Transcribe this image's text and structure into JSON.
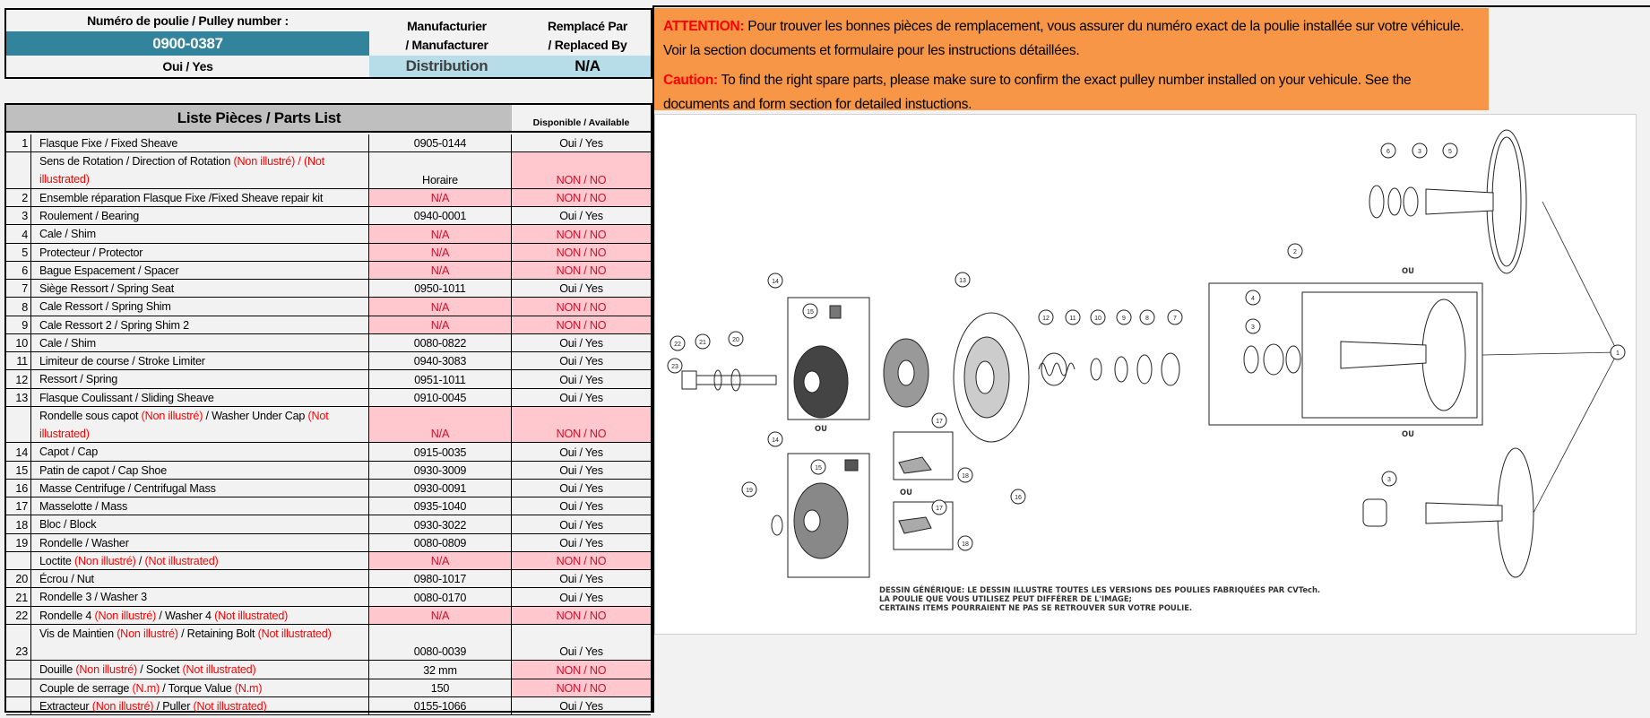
{
  "header": {
    "pulley_label": "Numéro de poulie / Pulley number :",
    "pulley_number": "0900-0387",
    "pulley_available": "Oui / Yes",
    "manufacturer_label_1": "Manufacturier",
    "manufacturer_label_2": "/ Manufacturer",
    "manufacturer_value": "Distribution",
    "replaced_label_1": "Remplacé Par",
    "replaced_label_2": "/ Replaced By",
    "replaced_value": "N/A"
  },
  "notice": {
    "fr_prefix": "ATTENTION:",
    "fr_text": " Pour trouver les bonnes pièces de remplacement, vous assurer du numéro exact de la poulie installée sur votre véhicule. Voir la section documents et formulaire pour les instructions détaillées.",
    "en_prefix": "Caution:",
    "en_text": " To find the right spare parts, please make sure to confirm the exact pulley number installed on your vehicule. See the documents and form section for detailed instuctions."
  },
  "parts_list": {
    "title": "Liste Pièces / Parts List",
    "available_header": "Disponible / Available",
    "rows": [
      {
        "num": "1",
        "desc": [
          {
            "t": "Flasque Fixe / Fixed Sheave"
          }
        ],
        "part": "0905-0144",
        "avail": "Oui / Yes"
      },
      {
        "num": "",
        "desc": [
          {
            "t": "Sens de Rotation / Direction of Rotation "
          },
          {
            "t": "(Non illustré) / (Not illustrated)",
            "red": true
          }
        ],
        "part": "Horaire",
        "avail": "NON / NO",
        "tall": true,
        "av_no": true
      },
      {
        "num": "2",
        "desc": [
          {
            "t": "Ensemble réparation Flasque Fixe /Fixed Sheave repair kit"
          }
        ],
        "part": "N/A",
        "avail": "NON / NO",
        "part_na": true,
        "av_no": true
      },
      {
        "num": "3",
        "desc": [
          {
            "t": "Roulement / Bearing"
          }
        ],
        "part": "0940-0001",
        "avail": "Oui / Yes"
      },
      {
        "num": "4",
        "desc": [
          {
            "t": "Cale / Shim"
          }
        ],
        "part": "N/A",
        "avail": "NON / NO",
        "part_na": true,
        "av_no": true
      },
      {
        "num": "5",
        "desc": [
          {
            "t": "Protecteur / Protector"
          }
        ],
        "part": "N/A",
        "avail": "NON / NO",
        "part_na": true,
        "av_no": true
      },
      {
        "num": "6",
        "desc": [
          {
            "t": "Bague Espacement / Spacer"
          }
        ],
        "part": "N/A",
        "avail": "NON / NO",
        "part_na": true,
        "av_no": true
      },
      {
        "num": "7",
        "desc": [
          {
            "t": "Siège Ressort / Spring Seat"
          }
        ],
        "part": "0950-1011",
        "avail": "Oui / Yes"
      },
      {
        "num": "8",
        "desc": [
          {
            "t": "Cale Ressort / Spring Shim"
          }
        ],
        "part": "N/A",
        "avail": "NON / NO",
        "part_na": true,
        "av_no": true
      },
      {
        "num": "9",
        "desc": [
          {
            "t": "Cale Ressort 2 / Spring Shim 2"
          }
        ],
        "part": "N/A",
        "avail": "NON / NO",
        "part_na": true,
        "av_no": true
      },
      {
        "num": "10",
        "desc": [
          {
            "t": "Cale / Shim"
          }
        ],
        "part": "0080-0822",
        "avail": "Oui / Yes"
      },
      {
        "num": "11",
        "desc": [
          {
            "t": "Limiteur de course / Stroke Limiter"
          }
        ],
        "part": "0940-3083",
        "avail": "Oui / Yes"
      },
      {
        "num": "12",
        "desc": [
          {
            "t": "Ressort / Spring"
          }
        ],
        "part": "0951-1011",
        "avail": "Oui / Yes"
      },
      {
        "num": "13",
        "desc": [
          {
            "t": "Flasque Coulissant / Sliding Sheave"
          }
        ],
        "part": "0910-0045",
        "avail": "Oui / Yes"
      },
      {
        "num": "",
        "desc": [
          {
            "t": "Rondelle sous capot "
          },
          {
            "t": "(Non illustré)",
            "red": true
          },
          {
            "t": " / Washer Under Cap "
          },
          {
            "t": "(Not illustrated)",
            "red": true
          }
        ],
        "part": "N/A",
        "avail": "NON / NO",
        "tall": true,
        "part_na": true,
        "av_no": true
      },
      {
        "num": "14",
        "desc": [
          {
            "t": "Capot / Cap"
          }
        ],
        "part": "0915-0035",
        "avail": "Oui / Yes"
      },
      {
        "num": "15",
        "desc": [
          {
            "t": "Patin de capot / Cap Shoe"
          }
        ],
        "part": "0930-3009",
        "avail": "Oui / Yes"
      },
      {
        "num": "16",
        "desc": [
          {
            "t": "Masse Centrifuge / Centrifugal Mass"
          }
        ],
        "part": "0930-0091",
        "avail": "Oui / Yes"
      },
      {
        "num": "17",
        "desc": [
          {
            "t": "Masselotte / Mass"
          }
        ],
        "part": "0935-1040",
        "avail": "Oui / Yes"
      },
      {
        "num": "18",
        "desc": [
          {
            "t": "Bloc / Block"
          }
        ],
        "part": "0930-3022",
        "avail": "Oui / Yes"
      },
      {
        "num": "19",
        "desc": [
          {
            "t": "Rondelle / Washer"
          }
        ],
        "part": "0080-0809",
        "avail": "Oui / Yes"
      },
      {
        "num": "",
        "desc": [
          {
            "t": "Loctite "
          },
          {
            "t": "(Non illustré)",
            "red": true
          },
          {
            "t": " / "
          },
          {
            "t": "(Not illustrated)",
            "red": true
          }
        ],
        "part": "N/A",
        "avail": "NON / NO",
        "part_na": true,
        "av_no": true
      },
      {
        "num": "20",
        "desc": [
          {
            "t": "Écrou / Nut"
          }
        ],
        "part": "0980-1017",
        "avail": "Oui / Yes"
      },
      {
        "num": "21",
        "desc": [
          {
            "t": "Rondelle 3 / Washer 3"
          }
        ],
        "part": "0080-0170",
        "avail": "Oui / Yes"
      },
      {
        "num": "22",
        "desc": [
          {
            "t": "Rondelle 4 "
          },
          {
            "t": "(Non illustré)",
            "red": true
          },
          {
            "t": " / Washer 4 "
          },
          {
            "t": "(Not illustrated)",
            "red": true
          }
        ],
        "part": "N/A",
        "avail": "NON / NO",
        "part_na": true,
        "av_no": true
      },
      {
        "num": "23",
        "desc": [
          {
            "t": "Vis de Maintien "
          },
          {
            "t": "(Non illustré)",
            "red": true
          },
          {
            "t": " / Retaining Bolt "
          },
          {
            "t": "(Not illustrated)",
            "red": true
          }
        ],
        "part": "0080-0039",
        "avail": "Oui / Yes",
        "tall": true
      },
      {
        "num": "",
        "desc": [
          {
            "t": "Douille "
          },
          {
            "t": "(Non illustré)",
            "red": true
          },
          {
            "t": " / Socket "
          },
          {
            "t": "(Not illustrated)",
            "red": true
          }
        ],
        "part": "32 mm",
        "avail": "NON / NO",
        "av_no": true
      },
      {
        "num": "",
        "desc": [
          {
            "t": "Couple de serrage "
          },
          {
            "t": "(N.m)",
            "red": true
          },
          {
            "t": " / Torque Value "
          },
          {
            "t": "(N.m)",
            "red": true
          }
        ],
        "part": "150",
        "avail": "NON / NO",
        "av_no": true
      },
      {
        "num": "",
        "desc": [
          {
            "t": "Extracteur "
          },
          {
            "t": "(Non illustré)",
            "red": true
          },
          {
            "t": " / Puller "
          },
          {
            "t": "(Not illustrated)",
            "red": true
          }
        ],
        "part": "0155-1066",
        "avail": "Oui / Yes"
      }
    ]
  },
  "diagram": {
    "or_label": "OU",
    "caption": [
      "DESSIN GÉNÉRIQUE: LE DESSIN ILLUSTRE TOUTES LES VERSIONS DES POULIES FABRIQUÉES PAR CVTech.",
      "LA POULIE QUE VOUS UTILISEZ PEUT DIFFÉRER DE L'IMAGE;",
      "CERTAINS ITEMS POURRAIENT NE PAS SE RETROUVER SUR VOTRE POULIE."
    ]
  },
  "colors": {
    "pulley_number_bg": "#31849b",
    "distribution_bg": "#b7dee8",
    "notice_bg": "#f79646",
    "unavailable_bg": "#ffc7ce",
    "warning_red": "#ff0000"
  }
}
